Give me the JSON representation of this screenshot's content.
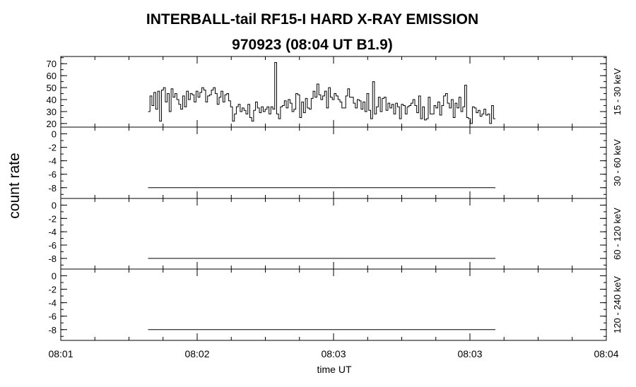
{
  "chart_data": {
    "type": "line",
    "title_line1": "INTERBALL-tail  RF15-I  HARD  X-RAY  EMISSION",
    "title_line2": "970923     (08:04 UT     B1.9)",
    "ylabel": "count rate",
    "xlabel": "time UT",
    "x_range_minutes": [
      0,
      3
    ],
    "x_ticks": [
      {
        "t": 0,
        "label": "08:01"
      },
      {
        "t": 0.75,
        "label": "08:02"
      },
      {
        "t": 1.5,
        "label": "08:03"
      },
      {
        "t": 2.25,
        "label": "08:03"
      },
      {
        "t": 3.0,
        "label": "08:04"
      }
    ],
    "data_start_minutes": 0.48,
    "data_end_minutes": 2.39,
    "panels": [
      {
        "band": "15 - 30 keV",
        "ylim": [
          17,
          76
        ],
        "yticks": [
          20,
          30,
          40,
          50,
          60,
          70
        ],
        "ytick_labels": [
          "20",
          "30",
          "40",
          "50",
          "60",
          "70"
        ],
        "series": {
          "values": [
            30,
            43,
            35,
            46,
            32,
            47,
            22,
            48,
            50,
            38,
            45,
            30,
            49,
            42,
            45,
            40,
            36,
            32,
            43,
            34,
            47,
            40,
            45,
            44,
            38,
            47,
            42,
            46,
            50,
            48,
            38,
            43,
            44,
            48,
            50,
            45,
            36,
            42,
            47,
            38,
            44,
            45,
            39,
            34,
            22,
            28,
            34,
            36,
            30,
            33,
            31,
            28,
            36,
            25,
            22,
            31,
            38,
            33,
            29,
            34,
            30,
            32,
            34,
            28,
            34,
            32,
            71,
            28,
            24,
            34,
            35,
            39,
            33,
            40,
            37,
            30,
            32,
            45,
            44,
            25,
            38,
            29,
            41,
            33,
            32,
            41,
            47,
            42,
            53,
            44,
            40,
            43,
            47,
            33,
            50,
            42,
            40,
            45,
            43,
            40,
            38,
            33,
            33,
            43,
            49,
            42,
            42,
            37,
            33,
            40,
            39,
            32,
            38,
            30,
            45,
            31,
            24,
            55,
            28,
            34,
            42,
            30,
            41,
            42,
            31,
            37,
            33,
            36,
            28,
            37,
            34,
            24,
            36,
            35,
            28,
            34,
            35,
            37,
            40,
            35,
            29,
            43,
            24,
            34,
            23,
            24,
            42,
            28,
            28,
            35,
            33,
            38,
            27,
            35,
            43,
            45,
            37,
            33,
            40,
            25,
            37,
            33,
            42,
            30,
            34,
            52,
            25,
            24,
            20,
            34,
            33,
            29,
            31,
            26,
            28,
            32,
            27,
            28,
            20,
            35,
            24
          ]
        }
      },
      {
        "band": "30 - 60 keV",
        "ylim": [
          -9.6,
          1
        ],
        "yticks": [
          0,
          -2,
          -4,
          -6,
          -8
        ],
        "ytick_labels": [
          "0",
          "-2",
          "-4",
          "-6",
          "-8"
        ],
        "series": {
          "values": [
            -8,
            -8
          ]
        }
      },
      {
        "band": "60 - 120 keV",
        "ylim": [
          -9.6,
          1
        ],
        "yticks": [
          0,
          -2,
          -4,
          -6,
          -8
        ],
        "ytick_labels": [
          "0",
          "-2",
          "-4",
          "-6",
          "-8"
        ],
        "series": {
          "values": [
            -8,
            -8
          ]
        }
      },
      {
        "band": "120 - 240 keV",
        "ylim": [
          -9.6,
          1
        ],
        "yticks": [
          0,
          -2,
          -4,
          -6,
          -8
        ],
        "ytick_labels": [
          "0",
          "-2",
          "-4",
          "-6",
          "-8"
        ],
        "series": {
          "values": [
            -8,
            -8
          ]
        }
      }
    ]
  }
}
